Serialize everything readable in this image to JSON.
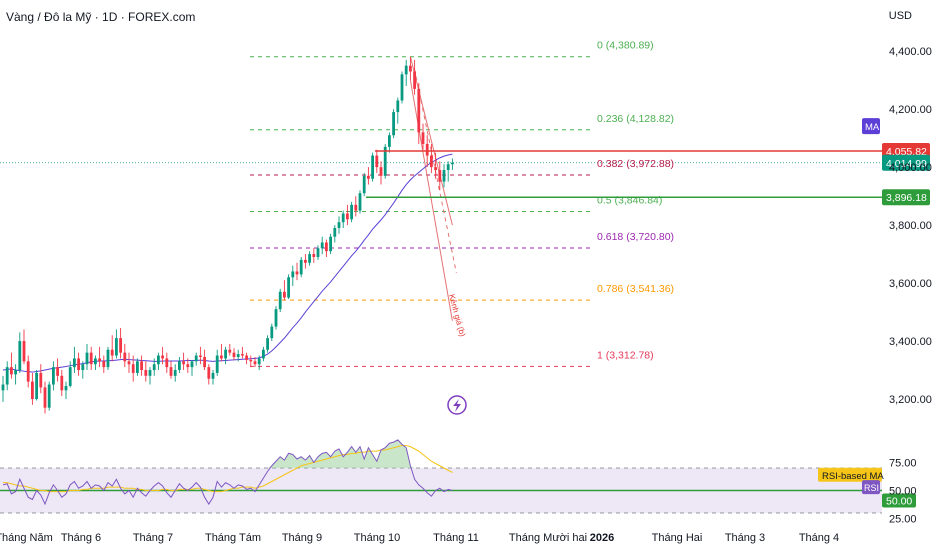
{
  "header": {
    "title": "Vàng / Đô la Mỹ · 1D · FOREX.com",
    "currency": "USD"
  },
  "colors": {
    "up": "#089981",
    "down": "#f23645",
    "ma": "#5b3fd6",
    "rsi": "#7e57c2",
    "rsi_ma": "#f5c518",
    "band_fill": "#ede7f6",
    "green_line": "#2e9c3a",
    "red_line": "#e53935",
    "axis_text": "#131722"
  },
  "chart_data": [
    {
      "type": "candlestick",
      "name": "price",
      "ylim": [
        3100,
        4480
      ],
      "y_ticks": [
        3200,
        3400,
        3600,
        3800,
        4000,
        4200,
        4400
      ],
      "y_tick_labels": [
        "3,200.00",
        "3,400.00",
        "3,600.00",
        "3,800.00",
        "4,000.00",
        "4,200.00",
        "4,400.00"
      ],
      "x_labels": [
        "Tháng Năm",
        "Tháng 6",
        "Tháng 7",
        "Tháng Tám",
        "Tháng 9",
        "Tháng 10",
        "Tháng 11",
        "Tháng Mười hai",
        "2026",
        "Tháng Hai",
        "Tháng 3",
        "Tháng 4"
      ],
      "candles": [
        [
          3230,
          3280,
          3190,
          3250
        ],
        [
          3250,
          3330,
          3230,
          3310
        ],
        [
          3310,
          3360,
          3270,
          3285
        ],
        [
          3285,
          3320,
          3250,
          3300
        ],
        [
          3300,
          3430,
          3290,
          3400
        ],
        [
          3400,
          3440,
          3320,
          3330
        ],
        [
          3330,
          3350,
          3240,
          3260
        ],
        [
          3260,
          3290,
          3180,
          3200
        ],
        [
          3200,
          3300,
          3195,
          3290
        ],
        [
          3290,
          3320,
          3220,
          3240
        ],
        [
          3240,
          3260,
          3150,
          3170
        ],
        [
          3170,
          3260,
          3160,
          3250
        ],
        [
          3250,
          3330,
          3230,
          3310
        ],
        [
          3310,
          3340,
          3260,
          3280
        ],
        [
          3280,
          3300,
          3210,
          3230
        ],
        [
          3230,
          3260,
          3200,
          3245
        ],
        [
          3245,
          3330,
          3240,
          3310
        ],
        [
          3310,
          3380,
          3290,
          3340
        ],
        [
          3340,
          3360,
          3280,
          3300
        ],
        [
          3300,
          3330,
          3270,
          3320
        ],
        [
          3320,
          3390,
          3300,
          3360
        ],
        [
          3360,
          3380,
          3300,
          3320
        ],
        [
          3320,
          3350,
          3300,
          3340
        ],
        [
          3340,
          3380,
          3310,
          3330
        ],
        [
          3330,
          3350,
          3290,
          3310
        ],
        [
          3310,
          3380,
          3300,
          3370
        ],
        [
          3370,
          3420,
          3330,
          3350
        ],
        [
          3350,
          3440,
          3340,
          3410
        ],
        [
          3410,
          3445,
          3340,
          3360
        ],
        [
          3360,
          3390,
          3310,
          3330
        ],
        [
          3330,
          3360,
          3290,
          3320
        ],
        [
          3320,
          3350,
          3260,
          3290
        ],
        [
          3290,
          3340,
          3280,
          3330
        ],
        [
          3330,
          3350,
          3280,
          3300
        ],
        [
          3300,
          3330,
          3260,
          3280
        ],
        [
          3280,
          3310,
          3250,
          3300
        ],
        [
          3300,
          3340,
          3280,
          3320
        ],
        [
          3320,
          3360,
          3300,
          3350
        ],
        [
          3350,
          3380,
          3320,
          3340
        ],
        [
          3340,
          3360,
          3290,
          3310
        ],
        [
          3310,
          3330,
          3270,
          3280
        ],
        [
          3280,
          3320,
          3260,
          3300
        ],
        [
          3300,
          3345,
          3290,
          3330
        ],
        [
          3330,
          3360,
          3300,
          3320
        ],
        [
          3320,
          3340,
          3290,
          3310
        ],
        [
          3310,
          3335,
          3280,
          3330
        ],
        [
          3330,
          3360,
          3315,
          3350
        ],
        [
          3350,
          3380,
          3320,
          3345
        ],
        [
          3345,
          3370,
          3300,
          3310
        ],
        [
          3310,
          3320,
          3250,
          3270
        ],
        [
          3270,
          3300,
          3250,
          3290
        ],
        [
          3290,
          3370,
          3280,
          3350
        ],
        [
          3350,
          3390,
          3330,
          3340
        ],
        [
          3340,
          3380,
          3320,
          3370
        ],
        [
          3370,
          3390,
          3350,
          3360
        ],
        [
          3360,
          3375,
          3335,
          3345
        ],
        [
          3345,
          3370,
          3330,
          3355
        ],
        [
          3355,
          3380,
          3340,
          3350
        ],
        [
          3350,
          3360,
          3320,
          3335
        ],
        [
          3335,
          3350,
          3310,
          3330
        ],
        [
          3330,
          3345,
          3310,
          3320
        ],
        [
          3320,
          3350,
          3300,
          3340
        ],
        [
          3340,
          3380,
          3330,
          3370
        ],
        [
          3370,
          3420,
          3360,
          3410
        ],
        [
          3410,
          3460,
          3400,
          3450
        ],
        [
          3450,
          3520,
          3440,
          3510
        ],
        [
          3510,
          3580,
          3500,
          3570
        ],
        [
          3570,
          3610,
          3540,
          3550
        ],
        [
          3550,
          3630,
          3545,
          3620
        ],
        [
          3620,
          3660,
          3590,
          3640
        ],
        [
          3640,
          3670,
          3610,
          3630
        ],
        [
          3630,
          3690,
          3620,
          3680
        ],
        [
          3680,
          3700,
          3650,
          3670
        ],
        [
          3670,
          3710,
          3660,
          3700
        ],
        [
          3700,
          3720,
          3670,
          3690
        ],
        [
          3690,
          3730,
          3680,
          3720
        ],
        [
          3720,
          3760,
          3700,
          3740
        ],
        [
          3740,
          3750,
          3690,
          3710
        ],
        [
          3710,
          3770,
          3700,
          3760
        ],
        [
          3760,
          3800,
          3740,
          3790
        ],
        [
          3790,
          3830,
          3770,
          3810
        ],
        [
          3810,
          3850,
          3790,
          3840
        ],
        [
          3840,
          3870,
          3800,
          3820
        ],
        [
          3820,
          3880,
          3810,
          3870
        ],
        [
          3870,
          3900,
          3830,
          3850
        ],
        [
          3850,
          3920,
          3840,
          3910
        ],
        [
          3910,
          3980,
          3900,
          3970
        ],
        [
          3970,
          4000,
          3940,
          3960
        ],
        [
          3960,
          4050,
          3950,
          4040
        ],
        [
          4040,
          4060,
          3980,
          4000
        ],
        [
          4000,
          4020,
          3940,
          3970
        ],
        [
          3970,
          4080,
          3960,
          4070
        ],
        [
          4070,
          4120,
          4050,
          4110
        ],
        [
          4110,
          4200,
          4100,
          4190
        ],
        [
          4190,
          4240,
          4150,
          4230
        ],
        [
          4230,
          4330,
          4220,
          4320
        ],
        [
          4320,
          4370,
          4280,
          4350
        ],
        [
          4350,
          4381,
          4300,
          4330
        ],
        [
          4330,
          4370,
          4250,
          4270
        ],
        [
          4270,
          4290,
          4080,
          4120
        ],
        [
          4120,
          4150,
          4060,
          4080
        ],
        [
          4080,
          4110,
          4000,
          4040
        ],
        [
          4040,
          4080,
          3980,
          4000
        ],
        [
          4000,
          4050,
          3960,
          3990
        ],
        [
          3990,
          4020,
          3920,
          3950
        ],
        [
          3950,
          4010,
          3930,
          3990
        ],
        [
          3990,
          4020,
          3950,
          4010
        ],
        [
          4010,
          4030,
          3990,
          4015
        ]
      ],
      "ma": [
        3300,
        3302,
        3304,
        3300,
        3298,
        3296,
        3294,
        3293,
        3295,
        3297,
        3300,
        3303,
        3306,
        3308,
        3310,
        3312,
        3315,
        3318,
        3320,
        3322,
        3325,
        3328,
        3330,
        3331,
        3331,
        3332,
        3333,
        3334,
        3336,
        3337,
        3336,
        3335,
        3334,
        3333,
        3332,
        3331,
        3330,
        3330,
        3331,
        3331,
        3331,
        3331,
        3331,
        3332,
        3333,
        3333,
        3333,
        3334,
        3333,
        3331,
        3330,
        3331,
        3332,
        3333,
        3334,
        3335,
        3336,
        3337,
        3338,
        3339,
        3340,
        3342,
        3347,
        3355,
        3366,
        3380,
        3395,
        3410,
        3428,
        3446,
        3462,
        3480,
        3500,
        3518,
        3536,
        3554,
        3572,
        3588,
        3604,
        3622,
        3640,
        3658,
        3676,
        3694,
        3710,
        3728,
        3748,
        3766,
        3786,
        3802,
        3818,
        3836,
        3856,
        3876,
        3898,
        3920,
        3940,
        3956,
        3970,
        3982,
        3994,
        4006,
        4016,
        4024,
        4032,
        4038,
        4042,
        4045
      ],
      "fib_levels": [
        {
          "ratio": 0,
          "label": "0 (4,380.89)",
          "price": 4380.89,
          "color": "#4caf50"
        },
        {
          "ratio": 0.236,
          "label": "0.236 (4,128.82)",
          "price": 4128.82,
          "color": "#4caf50"
        },
        {
          "ratio": 0.382,
          "label": "0.382 (3,972.88)",
          "price": 3972.88,
          "color": "#b71c4c"
        },
        {
          "ratio": 0.5,
          "label": "0.5 (3,846.84)",
          "price": 3846.84,
          "color": "#4caf50"
        },
        {
          "ratio": 0.618,
          "label": "0.618 (3,720.80)",
          "price": 3720.8,
          "color": "#9c27b0"
        },
        {
          "ratio": 0.786,
          "label": "0.786 (3,541.36)",
          "price": 3541.36,
          "color": "#ff9800"
        },
        {
          "ratio": 1,
          "label": "1 (3,312.78)",
          "price": 3312.78,
          "color": "#e53958"
        }
      ],
      "price_lines": [
        {
          "label": "4,055.82",
          "price": 4055.82,
          "color": "#e53935"
        },
        {
          "label": "3,896.18",
          "price": 3896.18,
          "color": "#2e9c3a"
        }
      ],
      "last_price": {
        "label": "4,014.99",
        "price": 4014.99,
        "color": "#089981"
      },
      "ma_tag": "MA",
      "channel_label": "Kênh giá (b)",
      "channel": {
        "top_start": [
          97,
          4381
        ],
        "top_end": [
          107,
          3800
        ],
        "bottom_start": [
          97,
          4300
        ],
        "bottom_end": [
          107,
          3470
        ]
      }
    },
    {
      "type": "line",
      "name": "RSI",
      "ylim": [
        22,
        102
      ],
      "y_ticks": [
        25,
        50,
        75
      ],
      "y_tick_labels": [
        "25.00",
        "50.00",
        "75.00"
      ],
      "band": [
        30,
        70
      ],
      "rsi_ma_tag": "RSI-based MA",
      "rsi_tag": "RSI",
      "value_tag": "50.00",
      "current_value": 50,
      "rsi": [
        55,
        56,
        47,
        49,
        60,
        52,
        44,
        42,
        50,
        46,
        38,
        48,
        55,
        50,
        44,
        47,
        55,
        58,
        52,
        54,
        58,
        52,
        55,
        54,
        50,
        57,
        54,
        60,
        52,
        47,
        50,
        44,
        52,
        48,
        45,
        50,
        54,
        57,
        54,
        48,
        44,
        50,
        56,
        52,
        50,
        53,
        57,
        53,
        44,
        38,
        44,
        58,
        53,
        57,
        55,
        52,
        55,
        54,
        51,
        52,
        49,
        55,
        61,
        67,
        72,
        76,
        80,
        77,
        83,
        82,
        78,
        80,
        77,
        81,
        75,
        80,
        83,
        84,
        80,
        85,
        87,
        80,
        84,
        89,
        84,
        89,
        78,
        88,
        82,
        76,
        86,
        88,
        92,
        93,
        95,
        91,
        88,
        72,
        60,
        55,
        52,
        48,
        45,
        50,
        52,
        49,
        51,
        50
      ],
      "rsi_ma": [
        57,
        57,
        56,
        55,
        54,
        54,
        53,
        52,
        51,
        50,
        50,
        49,
        49,
        49,
        49,
        49,
        50,
        50,
        50,
        51,
        51,
        52,
        52,
        52,
        52,
        53,
        53,
        53,
        53,
        52,
        52,
        52,
        51,
        51,
        50,
        50,
        50,
        50,
        51,
        51,
        50,
        50,
        51,
        51,
        51,
        51,
        52,
        52,
        51,
        50,
        49,
        49,
        49,
        50,
        51,
        52,
        52,
        53,
        53,
        53,
        52,
        53,
        54,
        56,
        58,
        60,
        62,
        64,
        66,
        68,
        70,
        72,
        73,
        74,
        75,
        76,
        77,
        78,
        79,
        80,
        81,
        82,
        82,
        83,
        83,
        84,
        84,
        85,
        85,
        85,
        86,
        86,
        87,
        88,
        89,
        90,
        90,
        89,
        87,
        85,
        82,
        79,
        76,
        74,
        72,
        70,
        68,
        66
      ]
    }
  ]
}
